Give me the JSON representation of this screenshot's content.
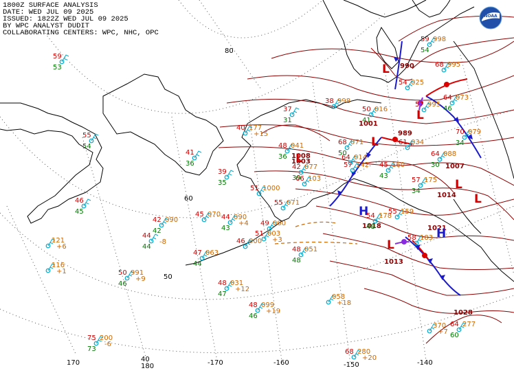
{
  "header": {
    "line1": "1800Z SURFACE ANALYSIS",
    "line2": "DATE: WED JUL 09 2025",
    "line3": "ISSUED: 1822Z WED JUL 09 2025",
    "line4": "BY WPC ANALYST DUDIT",
    "line5": "COLLABORATING CENTERS: WPC, NHC, OPC"
  },
  "logo": {
    "icon": "noaa-logo-icon",
    "text": "NOAA"
  },
  "colors": {
    "isobar": "#8b0000",
    "coast": "#000000",
    "grid": "#555555",
    "low": "#cc0000",
    "high": "#1a1acc",
    "temp": "#cc0000",
    "dew": "#007700",
    "pressure": "#cc6600",
    "station": "#00aacc",
    "cold_front": "#1a1acc",
    "warm_front": "#dd0000",
    "occluded": "#8a2be2"
  },
  "grid_labels": {
    "lat": [
      "80",
      "60",
      "50",
      "40"
    ],
    "lon": [
      "170",
      "180",
      "-170",
      "-160",
      "-150",
      "-140"
    ]
  },
  "isobar_labels": [
    "1001",
    "989",
    "990",
    "1003",
    "1008",
    "1007",
    "1014",
    "1018",
    "1021",
    "1013",
    "1028"
  ],
  "pressure_centers": [
    {
      "type": "L",
      "value": "990"
    },
    {
      "type": "L",
      "value": "1001"
    },
    {
      "type": "L",
      "value": "989"
    },
    {
      "type": "L",
      "value": "1003"
    },
    {
      "type": "L",
      "value": "1007"
    },
    {
      "type": "H",
      "value": "1018"
    },
    {
      "type": "H",
      "value": "1021"
    },
    {
      "type": "L",
      "value": "1013"
    },
    {
      "type": "L",
      "value": ""
    }
  ],
  "stations": [
    {
      "t": "59",
      "d": "53"
    },
    {
      "t": "55",
      "d": "54"
    },
    {
      "t": "46",
      "d": "45"
    },
    {
      "t": "41",
      "d": "36"
    },
    {
      "t": "40",
      "p": "177",
      "d": "",
      "tend": "+15"
    },
    {
      "t": "37",
      "d": "31"
    },
    {
      "t": "39",
      "d": "35"
    },
    {
      "t": "45",
      "p": "070"
    },
    {
      "t": "42",
      "p": "090",
      "d": "42"
    },
    {
      "t": "44",
      "p": "090",
      "d": "43",
      "tend": "+4"
    },
    {
      "t": "44",
      "d": "44",
      "tend": "-8"
    },
    {
      "t": "47",
      "p": "063",
      "d": "44"
    },
    {
      "t": "46",
      "p": "000"
    },
    {
      "t": "51",
      "p": "003",
      "tend": "+3"
    },
    {
      "t": "48",
      "p": "051",
      "d": "48"
    },
    {
      "t": "48",
      "p": "031",
      "d": "47",
      "tend": "+12"
    },
    {
      "t": "48",
      "p": "099",
      "d": "46",
      "tend": "+19"
    },
    {
      "t": "50",
      "p": "991",
      "d": "46",
      "tend": "+9"
    },
    {
      "p": "121",
      "tend": "+6"
    },
    {
      "p": "116",
      "tend": "+1"
    },
    {
      "t": "75",
      "p": "200",
      "d": "73",
      "tend": "-6"
    },
    {
      "p": "058",
      "tend": "+18"
    },
    {
      "t": "68",
      "p": "280",
      "tend": "+20"
    },
    {
      "p": "370",
      "tend": "+7"
    },
    {
      "t": "64",
      "p": "277",
      "d": "60"
    },
    {
      "t": "48",
      "p": "041",
      "d": "36"
    },
    {
      "t": "66",
      "p": "103"
    },
    {
      "t": "55",
      "p": "071"
    },
    {
      "t": "68",
      "p": "071",
      "d": "50"
    },
    {
      "t": "57",
      "p": "142"
    },
    {
      "t": "45",
      "p": "160",
      "d": "43"
    },
    {
      "t": "54",
      "p": "178",
      "d": "48"
    },
    {
      "t": "55",
      "p": "159"
    },
    {
      "t": "58",
      "p": "183"
    },
    {
      "t": "57",
      "p": "175",
      "d": "34"
    },
    {
      "t": "64",
      "p": "088",
      "d": "30"
    },
    {
      "t": "70",
      "p": "079",
      "d": "34"
    },
    {
      "t": "64",
      "p": "073",
      "d": "46"
    },
    {
      "t": "57",
      "p": "995"
    },
    {
      "t": "59",
      "p": "998",
      "d": "54"
    },
    {
      "t": "68",
      "p": "995"
    },
    {
      "t": "49",
      "p": "000"
    },
    {
      "t": "51",
      "p": "1000"
    },
    {
      "t": "61",
      "p": "034"
    },
    {
      "t": "64",
      "p": "014"
    },
    {
      "t": "54",
      "p": "025"
    },
    {
      "t": "50",
      "p": "016",
      "d": "41"
    },
    {
      "t": "42",
      "p": "077",
      "d": "39"
    },
    {
      "t": "38",
      "p": "998"
    }
  ]
}
